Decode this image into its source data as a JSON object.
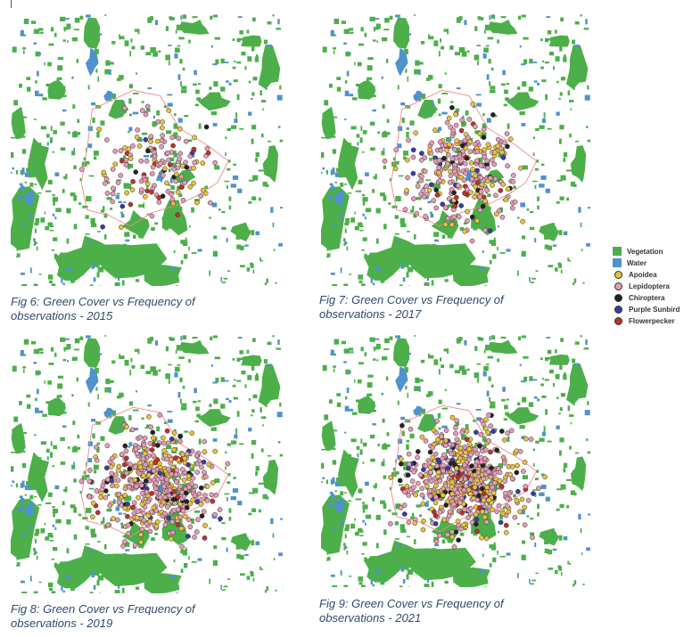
{
  "figures": [
    {
      "id": "fig6",
      "caption_line1": "Fig 6: Green Cover vs Frequency of",
      "caption_line2": "observations - 2015",
      "density": 0.25
    },
    {
      "id": "fig7",
      "caption_line1": "Fig 7: Green Cover vs Frequency of",
      "caption_line2": "observations - 2017",
      "density": 0.5
    },
    {
      "id": "fig8",
      "caption_line1": "Fig 8: Green Cover vs Frequency of",
      "caption_line2": "observations - 2019",
      "density": 0.8
    },
    {
      "id": "fig9",
      "caption_line1": "Fig 9: Green Cover vs Frequency of",
      "caption_line2": "observations - 2021",
      "density": 1.0
    }
  ],
  "legend": {
    "items": [
      {
        "label": "Vegetation",
        "kind": "square",
        "color": "#4caf4a",
        "icon": "vegetation-swatch"
      },
      {
        "label": "Water",
        "kind": "square",
        "color": "#4f92cc",
        "icon": "water-swatch"
      },
      {
        "label": "Apoidea",
        "kind": "dot",
        "color": "#e8c23a",
        "icon": "apoidea-marker"
      },
      {
        "label": "Lepidoptera",
        "kind": "dot",
        "color": "#e79ab5",
        "icon": "lepidoptera-marker"
      },
      {
        "label": "Chiroptera",
        "kind": "dot",
        "color": "#222222",
        "icon": "chiroptera-marker"
      },
      {
        "label": "Purple Sunbird",
        "kind": "dot",
        "color": "#3a3aa8",
        "icon": "purple-sunbird-marker"
      },
      {
        "label": "Flowerpecker",
        "kind": "dot",
        "color": "#c0302a",
        "icon": "flowerpecker-marker"
      }
    ]
  },
  "colors": {
    "vegetation": "#4caf4a",
    "water": "#4f92cc",
    "boundary": "#f08a8a",
    "caption": "#2f4a6b"
  }
}
